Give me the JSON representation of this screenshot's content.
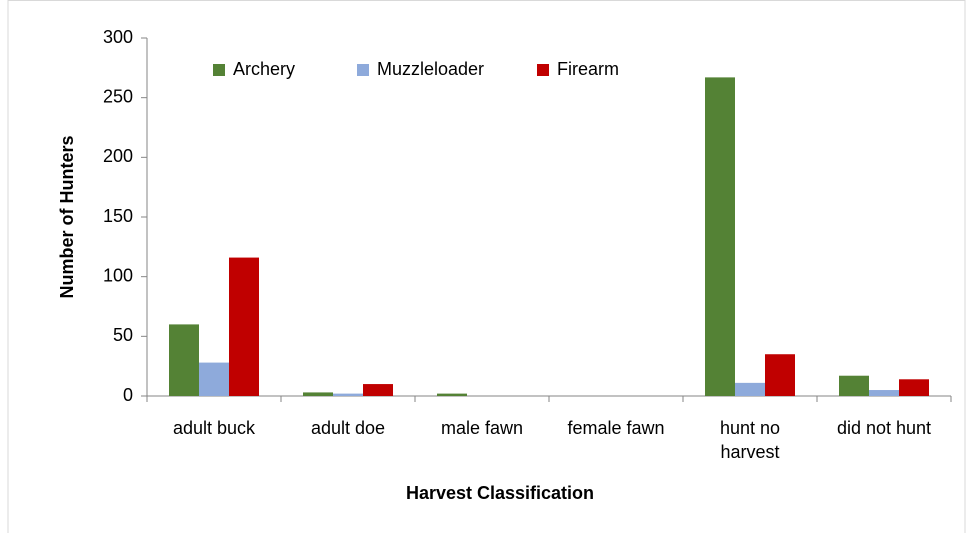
{
  "chart_data": {
    "type": "bar",
    "x_label": "Harvest Classification",
    "y_label": "Number of Hunters",
    "categories": [
      "adult buck",
      "adult doe",
      "male fawn",
      "female fawn",
      "hunt no harvest",
      "did not hunt"
    ],
    "series": [
      {
        "name": "Archery",
        "color": "#548235",
        "values": [
          60,
          3,
          2,
          0,
          267,
          17
        ]
      },
      {
        "name": "Muzzleloader",
        "color": "#8eaadb",
        "values": [
          28,
          2,
          0,
          0,
          11,
          5
        ]
      },
      {
        "name": "Firearm",
        "color": "#c00000",
        "values": [
          116,
          10,
          0,
          0,
          35,
          14
        ]
      }
    ],
    "ylim": [
      0,
      300
    ],
    "yticks": [
      0,
      50,
      100,
      150,
      200,
      250,
      300
    ],
    "grid": false,
    "legend": "top"
  }
}
